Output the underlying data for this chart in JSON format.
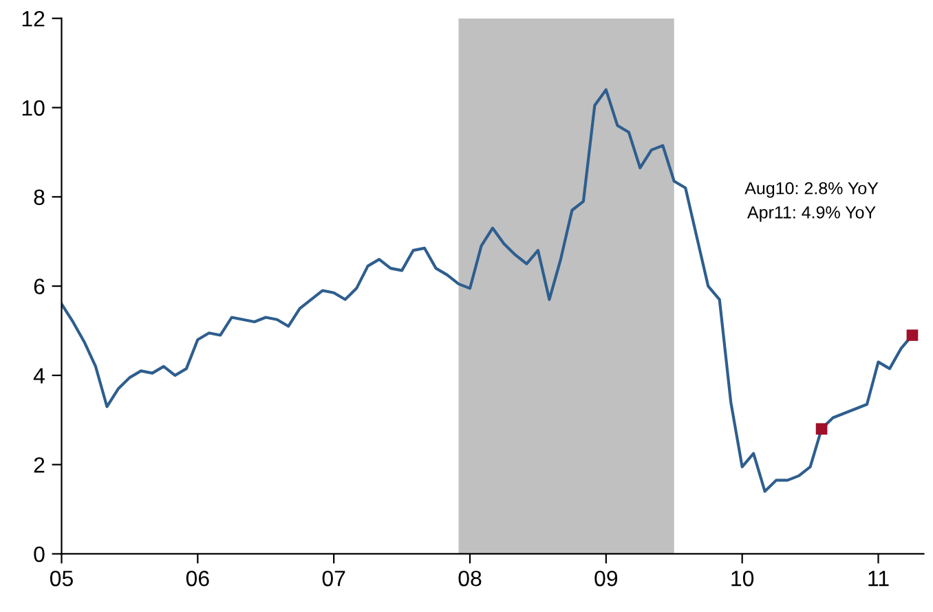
{
  "chart_data": {
    "type": "line",
    "xlim": [
      "2005",
      "2011-05"
    ],
    "ylim": [
      0,
      12
    ],
    "yticks": [
      0,
      2,
      4,
      6,
      8,
      10,
      12
    ],
    "xticks": [
      {
        "value": "2005",
        "label": "05"
      },
      {
        "value": "2006",
        "label": "06"
      },
      {
        "value": "2007",
        "label": "07"
      },
      {
        "value": "2008",
        "label": "08"
      },
      {
        "value": "2009",
        "label": "09"
      },
      {
        "value": "2010",
        "label": "10"
      },
      {
        "value": "2011",
        "label": "11"
      }
    ],
    "grid": false,
    "legend": false,
    "bands": [
      {
        "axis": "x",
        "from": "2007-12",
        "to": "2009-07",
        "color": "#c0c0c0"
      }
    ],
    "annotations": [
      "Aug10: 2.8% YoY",
      "Apr11: 4.9% YoY"
    ],
    "series": [
      {
        "color": "#2e5e8e",
        "marker": "none",
        "line_style": "solid",
        "x": [
          "2005-01",
          "2005-02",
          "2005-03",
          "2005-04",
          "2005-05",
          "2005-06",
          "2005-07",
          "2005-08",
          "2005-09",
          "2005-10",
          "2005-11",
          "2005-12",
          "2006-01",
          "2006-02",
          "2006-03",
          "2006-04",
          "2006-05",
          "2006-06",
          "2006-07",
          "2006-08",
          "2006-09",
          "2006-10",
          "2006-11",
          "2006-12",
          "2007-01",
          "2007-02",
          "2007-03",
          "2007-04",
          "2007-05",
          "2007-06",
          "2007-07",
          "2007-08",
          "2007-09",
          "2007-10",
          "2007-11",
          "2007-12",
          "2008-01",
          "2008-02",
          "2008-03",
          "2008-04",
          "2008-05",
          "2008-06",
          "2008-07",
          "2008-08",
          "2008-09",
          "2008-10",
          "2008-11",
          "2008-12",
          "2009-01",
          "2009-02",
          "2009-03",
          "2009-04",
          "2009-05",
          "2009-06",
          "2009-07",
          "2009-08",
          "2009-09",
          "2009-10",
          "2009-11",
          "2009-12",
          "2010-01",
          "2010-02",
          "2010-03",
          "2010-04",
          "2010-05",
          "2010-06",
          "2010-07",
          "2010-08",
          "2010-09",
          "2010-10",
          "2010-11",
          "2010-12",
          "2011-01",
          "2011-02",
          "2011-03",
          "2011-04"
        ],
        "values": [
          5.6,
          5.2,
          4.75,
          4.2,
          3.3,
          3.7,
          3.95,
          4.1,
          4.05,
          4.2,
          4.0,
          4.15,
          4.8,
          4.95,
          4.9,
          5.3,
          5.25,
          5.2,
          5.3,
          5.25,
          5.1,
          5.5,
          5.7,
          5.9,
          5.85,
          5.7,
          5.95,
          6.45,
          6.6,
          6.4,
          6.35,
          6.8,
          6.85,
          6.4,
          6.25,
          6.05,
          5.95,
          6.9,
          7.3,
          6.95,
          6.7,
          6.5,
          6.8,
          5.7,
          6.6,
          7.7,
          7.9,
          10.05,
          10.4,
          9.6,
          9.45,
          8.65,
          9.05,
          9.15,
          8.35,
          8.2,
          7.1,
          6.0,
          5.7,
          3.4,
          1.95,
          2.25,
          1.4,
          1.65,
          1.65,
          1.75,
          1.95,
          2.8,
          3.05,
          3.15,
          3.25,
          3.35,
          4.3,
          4.15,
          4.6,
          4.9
        ]
      },
      {
        "type": "scatter",
        "color": "#a0102a",
        "marker": "square",
        "x": [
          "2010-08",
          "2011-04"
        ],
        "values": [
          2.8,
          4.9
        ]
      }
    ]
  }
}
